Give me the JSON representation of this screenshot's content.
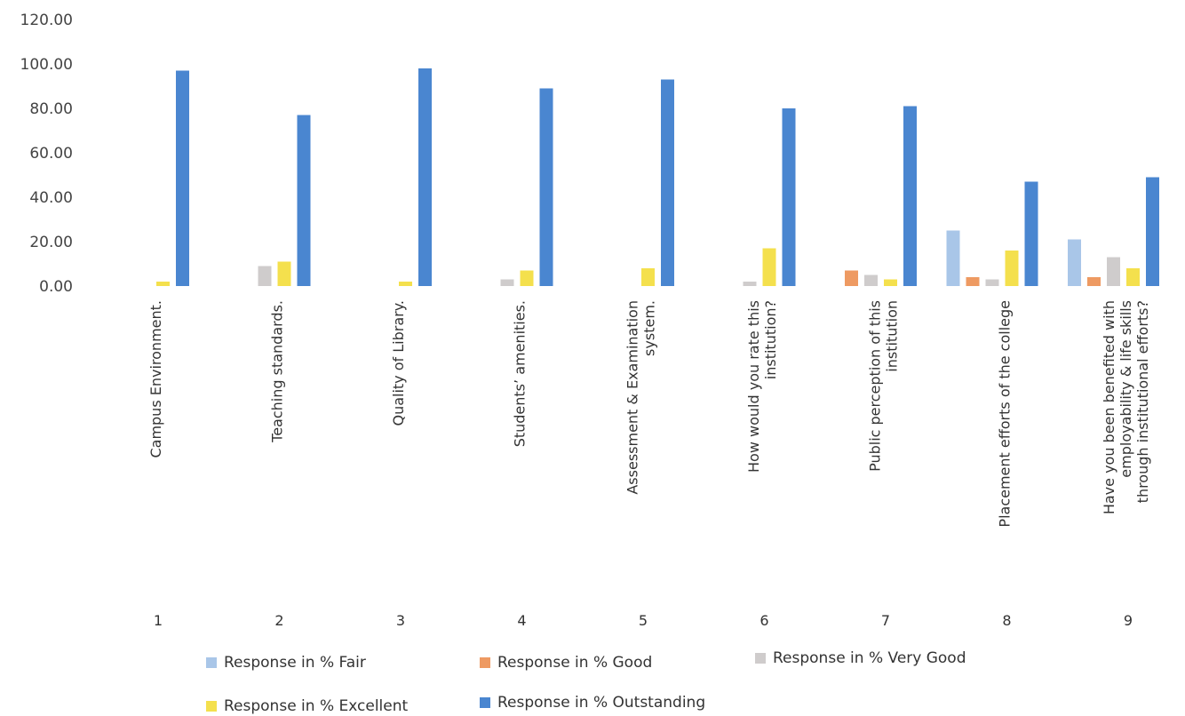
{
  "chart_data": {
    "type": "bar",
    "ylim": [
      0,
      120
    ],
    "yticks": [
      "0.00",
      "20.00",
      "40.00",
      "60.00",
      "80.00",
      "100.00",
      "120.00"
    ],
    "numbers": [
      "1",
      "2",
      "3",
      "4",
      "5",
      "6",
      "7",
      "8",
      "9"
    ],
    "categories": [
      [
        "Campus Environment."
      ],
      [
        "Teaching standards."
      ],
      [
        "Quality of Library."
      ],
      [
        "Students’ amenities."
      ],
      [
        "Assessment & Examination",
        "system."
      ],
      [
        "How would you rate this",
        "institution?"
      ],
      [
        "Public perception of this",
        "institution"
      ],
      [
        "Placement efforts of the college"
      ],
      [
        "Have you been benefited with",
        "employability & life skills",
        "through institutional efforts?"
      ]
    ],
    "series": [
      {
        "name": "Response in % Fair",
        "color": "#a9c6e8",
        "values": [
          0,
          0,
          0,
          0,
          0,
          0,
          0,
          25,
          21
        ]
      },
      {
        "name": "Response in % Good",
        "color": "#ee9a62",
        "values": [
          0,
          0,
          0,
          0,
          0,
          0,
          7,
          4,
          4
        ]
      },
      {
        "name": "Response in % Very Good",
        "color": "#cfcccc",
        "values": [
          0,
          9,
          0,
          3,
          0,
          2,
          5,
          3,
          13
        ]
      },
      {
        "name": "Response in % Excellent",
        "color": "#f4e04d",
        "values": [
          2,
          11,
          2,
          7,
          8,
          17,
          3,
          16,
          8
        ]
      },
      {
        "name": "Response in % Outstanding",
        "color": "#4a86d0",
        "values": [
          97,
          77,
          98,
          89,
          93,
          80,
          81,
          47,
          49
        ]
      }
    ]
  }
}
